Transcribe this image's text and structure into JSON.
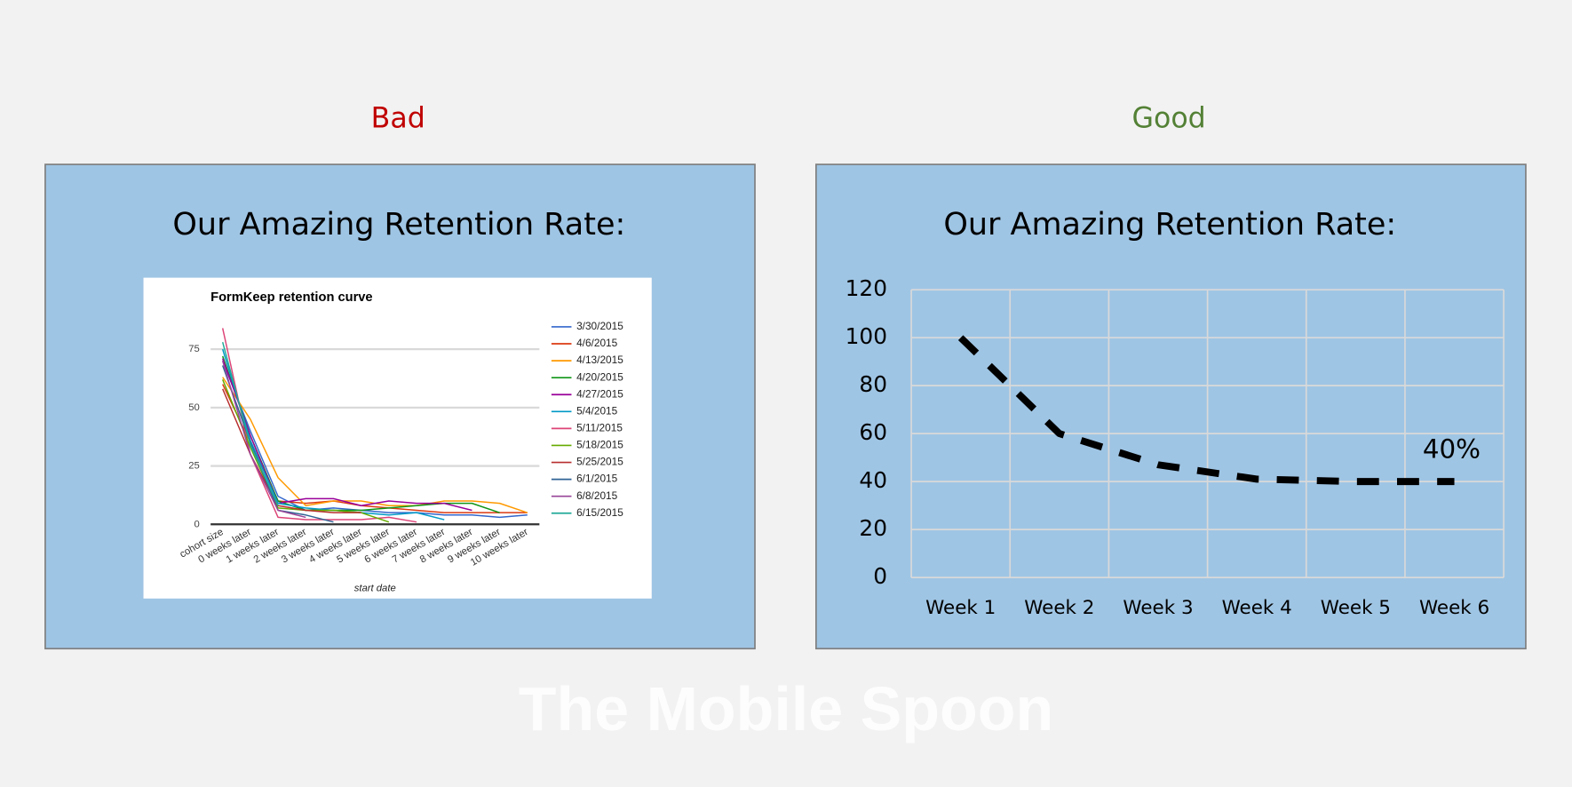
{
  "panels": [
    {
      "label": "Bad",
      "title": "Our Amazing Retention Rate:"
    },
    {
      "label": "Good",
      "title": "Our Amazing Retention Rate:"
    }
  ],
  "watermark": "The Mobile Spoon",
  "chart_data": [
    {
      "type": "line",
      "title": "FormKeep retention curve",
      "x_label": "start date",
      "categories": [
        "cohort size",
        "0 weeks later",
        "1 weeks later",
        "2 weeks later",
        "3 weeks later",
        "4 weeks later",
        "5 weeks later",
        "6 weeks later",
        "7 weeks later",
        "8 weeks later",
        "9 weeks later",
        "10 weeks later"
      ],
      "ylim": [
        0,
        85
      ],
      "yticks": [
        0,
        25,
        50,
        75
      ],
      "grid": true,
      "legend": "right",
      "series": [
        {
          "name": "3/30/2015",
          "color": "#3366cc",
          "values": [
            70,
            40,
            12,
            6,
            7,
            6,
            5,
            5,
            4,
            4,
            3,
            4
          ]
        },
        {
          "name": "4/6/2015",
          "color": "#dc3912",
          "values": [
            60,
            35,
            10,
            9,
            10,
            8,
            7,
            6,
            5,
            5,
            5,
            5
          ]
        },
        {
          "name": "4/13/2015",
          "color": "#ff9900",
          "values": [
            63,
            45,
            20,
            8,
            10,
            10,
            8,
            8,
            10,
            10,
            9,
            5
          ]
        },
        {
          "name": "4/20/2015",
          "color": "#109618",
          "values": [
            72,
            38,
            10,
            6,
            6,
            6,
            7,
            8,
            9,
            9,
            5,
            null
          ]
        },
        {
          "name": "4/27/2015",
          "color": "#990099",
          "values": [
            71,
            38,
            9,
            11,
            11,
            8,
            10,
            9,
            9,
            6,
            null,
            null
          ]
        },
        {
          "name": "5/4/2015",
          "color": "#0099c6",
          "values": [
            75,
            36,
            9,
            7,
            6,
            5,
            4,
            5,
            2,
            null,
            null,
            null
          ]
        },
        {
          "name": "5/11/2015",
          "color": "#dd4477",
          "values": [
            84,
            30,
            3,
            2,
            2,
            2,
            3,
            1,
            null,
            null,
            null,
            null
          ]
        },
        {
          "name": "5/18/2015",
          "color": "#66aa00",
          "values": [
            62,
            33,
            7,
            6,
            6,
            5,
            1,
            null,
            null,
            null,
            null,
            null
          ]
        },
        {
          "name": "5/25/2015",
          "color": "#b82e2e",
          "values": [
            58,
            30,
            8,
            6,
            5,
            5,
            null,
            null,
            null,
            null,
            null,
            null
          ]
        },
        {
          "name": "6/1/2015",
          "color": "#316395",
          "values": [
            68,
            35,
            6,
            4,
            1,
            null,
            null,
            null,
            null,
            null,
            null,
            null
          ]
        },
        {
          "name": "6/8/2015",
          "color": "#994499",
          "values": [
            70,
            30,
            6,
            3,
            null,
            null,
            null,
            null,
            null,
            null,
            null,
            null
          ]
        },
        {
          "name": "6/15/2015",
          "color": "#22aa99",
          "values": [
            78,
            34,
            8,
            null,
            null,
            null,
            null,
            null,
            null,
            null,
            null,
            null
          ]
        }
      ]
    },
    {
      "type": "line",
      "categories": [
        "Week 1",
        "Week 2",
        "Week 3",
        "Week 4",
        "Week 5",
        "Week 6"
      ],
      "values": [
        100,
        60,
        47,
        41,
        40,
        40
      ],
      "color": "#000000",
      "ylim": [
        0,
        120
      ],
      "yticks": [
        0,
        20,
        40,
        60,
        80,
        100,
        120
      ],
      "grid": true,
      "annotation": "40%"
    }
  ]
}
